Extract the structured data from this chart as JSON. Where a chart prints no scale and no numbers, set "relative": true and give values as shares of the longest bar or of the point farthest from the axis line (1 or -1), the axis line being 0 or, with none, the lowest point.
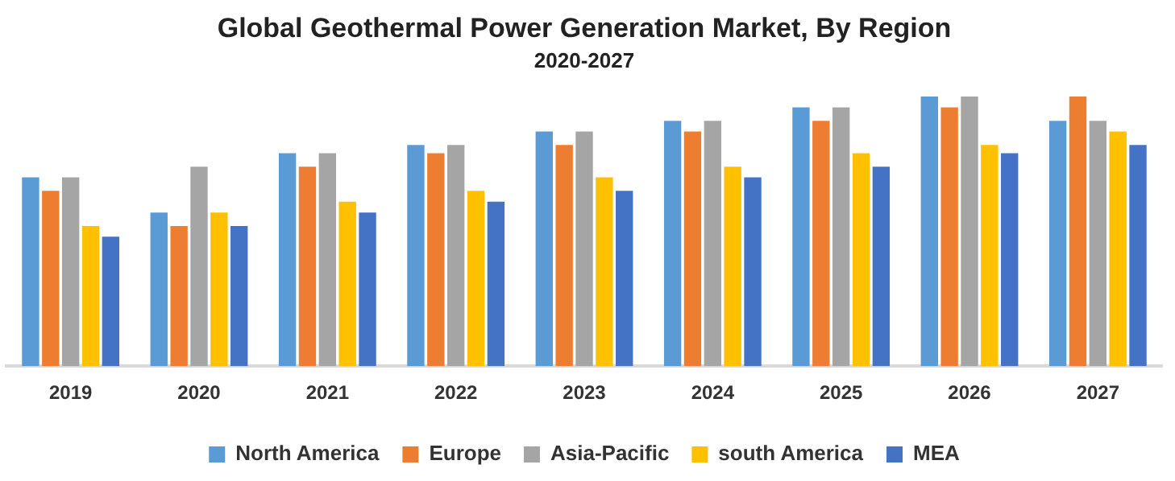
{
  "chart_data": {
    "type": "bar",
    "title": "Global Geothermal Power Generation Market, By Region",
    "subtitle": "2020-2027",
    "relative": true,
    "legend": "bottom",
    "grid": false,
    "categories": [
      "2019",
      "2020",
      "2021",
      "2022",
      "2023",
      "2024",
      "2025",
      "2026",
      "2027"
    ],
    "series": [
      {
        "name": "North America",
        "color": "#5b9bd5",
        "values": [
          0.7,
          0.57,
          0.79,
          0.82,
          0.87,
          0.91,
          0.96,
          1,
          0.91
        ]
      },
      {
        "name": "Europe",
        "color": "#ed7d31",
        "values": [
          0.65,
          0.52,
          0.74,
          0.79,
          0.82,
          0.87,
          0.91,
          0.96,
          1
        ]
      },
      {
        "name": "Asia-Pacific",
        "color": "#a5a5a5",
        "values": [
          0.7,
          0.74,
          0.79,
          0.82,
          0.87,
          0.91,
          0.96,
          1,
          0.91
        ]
      },
      {
        "name": "south America",
        "color": "#ffc000",
        "values": [
          0.52,
          0.57,
          0.61,
          0.65,
          0.7,
          0.74,
          0.79,
          0.82,
          0.87
        ]
      },
      {
        "name": "MEA",
        "color": "#4472c4",
        "values": [
          0.48,
          0.52,
          0.57,
          0.61,
          0.65,
          0.7,
          0.74,
          0.79,
          0.82
        ]
      }
    ]
  }
}
